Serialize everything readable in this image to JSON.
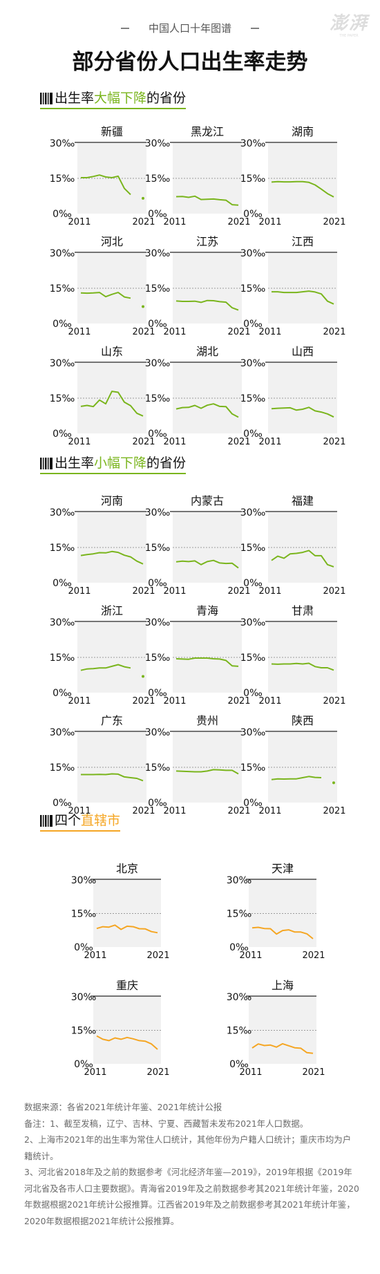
{
  "header": {
    "series_label": "中国人口十年图谱",
    "brand": "澎湃",
    "brand_sub": "THE PAPER",
    "title": "部分省份人口出生率走势"
  },
  "colors": {
    "green": "#7ab51d",
    "orange": "#f5a623",
    "panel_bg": "#f1f1f1",
    "text": "#1a1a1a",
    "note": "#6b6b6b"
  },
  "sections": [
    {
      "pre": "出生率",
      "highlight": "大幅下降",
      "post": "的省份",
      "color": "#7ab51d"
    },
    {
      "pre": "出生率",
      "highlight": "小幅下降",
      "post": "的省份",
      "color": "#7ab51d"
    },
    {
      "pre": "四个",
      "highlight": "直辖市",
      "post": "",
      "color": "#f5a623"
    }
  ],
  "axis": {
    "y_ticks": [
      "30‰",
      "15‰",
      "0‰"
    ],
    "x_start": "2011",
    "x_end": "2021"
  },
  "chart_data": [
    {
      "type": "line",
      "title": "新疆",
      "ylim": [
        0,
        30
      ],
      "x": [
        2011,
        2012,
        2013,
        2014,
        2015,
        2016,
        2017,
        2018,
        2019,
        2020,
        2021
      ],
      "values": [
        15.3,
        15.3,
        15.8,
        16.4,
        15.6,
        15.3,
        15.9,
        10.7,
        8.1,
        null,
        6.5
      ]
    },
    {
      "type": "line",
      "title": "黑龙江",
      "ylim": [
        0,
        30
      ],
      "x": [
        2011,
        2012,
        2013,
        2014,
        2015,
        2016,
        2017,
        2018,
        2019,
        2020,
        2021
      ],
      "values": [
        7.2,
        7.3,
        6.9,
        7.4,
        6.0,
        6.1,
        6.2,
        5.9,
        5.7,
        3.8,
        3.6
      ]
    },
    {
      "type": "line",
      "title": "湖南",
      "ylim": [
        0,
        30
      ],
      "x": [
        2011,
        2012,
        2013,
        2014,
        2015,
        2016,
        2017,
        2018,
        2019,
        2020,
        2021
      ],
      "values": [
        13.4,
        13.6,
        13.5,
        13.5,
        13.6,
        13.6,
        13.3,
        12.2,
        10.4,
        8.5,
        7.1
      ]
    },
    {
      "type": "line",
      "title": "河北",
      "ylim": [
        0,
        30
      ],
      "x": [
        2011,
        2012,
        2013,
        2014,
        2015,
        2016,
        2017,
        2018,
        2019,
        2020,
        2021
      ],
      "values": [
        13.0,
        12.9,
        13.0,
        13.2,
        11.4,
        12.4,
        13.2,
        11.3,
        10.8,
        null,
        7.2
      ]
    },
    {
      "type": "line",
      "title": "江苏",
      "ylim": [
        0,
        30
      ],
      "x": [
        2011,
        2012,
        2013,
        2014,
        2015,
        2016,
        2017,
        2018,
        2019,
        2020,
        2021
      ],
      "values": [
        9.6,
        9.4,
        9.4,
        9.5,
        9.0,
        9.8,
        9.7,
        9.3,
        9.1,
        6.7,
        5.7
      ]
    },
    {
      "type": "line",
      "title": "江西",
      "ylim": [
        0,
        30
      ],
      "x": [
        2011,
        2012,
        2013,
        2014,
        2015,
        2016,
        2017,
        2018,
        2019,
        2020,
        2021
      ],
      "values": [
        13.5,
        13.5,
        13.2,
        13.2,
        13.2,
        13.5,
        13.8,
        13.4,
        12.6,
        9.5,
        8.3
      ]
    },
    {
      "type": "line",
      "title": "山东",
      "ylim": [
        0,
        30
      ],
      "x": [
        2011,
        2012,
        2013,
        2014,
        2015,
        2016,
        2017,
        2018,
        2019,
        2020,
        2021
      ],
      "values": [
        11.5,
        11.9,
        11.4,
        14.2,
        12.6,
        17.9,
        17.5,
        13.3,
        11.8,
        8.6,
        7.4
      ]
    },
    {
      "type": "line",
      "title": "湖北",
      "ylim": [
        0,
        30
      ],
      "x": [
        2011,
        2012,
        2013,
        2014,
        2015,
        2016,
        2017,
        2018,
        2019,
        2020,
        2021
      ],
      "values": [
        10.4,
        11.0,
        11.1,
        11.9,
        10.7,
        12.0,
        12.6,
        11.5,
        11.4,
        8.3,
        6.9
      ]
    },
    {
      "type": "line",
      "title": "山西",
      "ylim": [
        0,
        30
      ],
      "x": [
        2011,
        2012,
        2013,
        2014,
        2015,
        2016,
        2017,
        2018,
        2019,
        2020,
        2021
      ],
      "values": [
        10.5,
        10.7,
        10.8,
        10.9,
        9.9,
        10.3,
        11.1,
        9.6,
        9.1,
        8.3,
        7.0
      ]
    },
    {
      "type": "line",
      "title": "河南",
      "ylim": [
        0,
        30
      ],
      "x": [
        2011,
        2012,
        2013,
        2014,
        2015,
        2016,
        2017,
        2018,
        2019,
        2020,
        2021
      ],
      "values": [
        11.6,
        12.0,
        12.3,
        12.8,
        12.7,
        13.3,
        12.9,
        11.7,
        11.0,
        9.2,
        8.0
      ]
    },
    {
      "type": "line",
      "title": "内蒙古",
      "ylim": [
        0,
        30
      ],
      "x": [
        2011,
        2012,
        2013,
        2014,
        2015,
        2016,
        2017,
        2018,
        2019,
        2020,
        2021
      ],
      "values": [
        8.9,
        9.2,
        9.0,
        9.3,
        7.7,
        9.0,
        9.5,
        8.4,
        8.2,
        8.3,
        6.3
      ]
    },
    {
      "type": "line",
      "title": "福建",
      "ylim": [
        0,
        30
      ],
      "x": [
        2011,
        2012,
        2013,
        2014,
        2015,
        2016,
        2017,
        2018,
        2019,
        2020,
        2021
      ],
      "values": [
        9.5,
        11.3,
        10.4,
        12.3,
        12.5,
        12.9,
        13.7,
        11.5,
        11.5,
        7.7,
        6.8
      ]
    },
    {
      "type": "line",
      "title": "浙江",
      "ylim": [
        0,
        30
      ],
      "x": [
        2011,
        2012,
        2013,
        2014,
        2015,
        2016,
        2017,
        2018,
        2019,
        2020,
        2021
      ],
      "values": [
        9.5,
        10.1,
        10.2,
        10.5,
        10.5,
        11.2,
        11.9,
        11.0,
        10.5,
        null,
        6.9
      ]
    },
    {
      "type": "line",
      "title": "青海",
      "ylim": [
        0,
        30
      ],
      "x": [
        2011,
        2012,
        2013,
        2014,
        2015,
        2016,
        2017,
        2018,
        2019,
        2020,
        2021
      ],
      "values": [
        14.4,
        14.3,
        14.2,
        14.7,
        14.7,
        14.7,
        14.4,
        14.3,
        13.7,
        11.4,
        11.2
      ]
    },
    {
      "type": "line",
      "title": "甘肃",
      "ylim": [
        0,
        30
      ],
      "x": [
        2011,
        2012,
        2013,
        2014,
        2015,
        2016,
        2017,
        2018,
        2019,
        2020,
        2021
      ],
      "values": [
        12.2,
        12.1,
        12.2,
        12.2,
        12.4,
        12.2,
        12.5,
        11.1,
        10.6,
        10.6,
        9.6
      ]
    },
    {
      "type": "line",
      "title": "广东",
      "ylim": [
        0,
        30
      ],
      "x": [
        2011,
        2012,
        2013,
        2014,
        2015,
        2016,
        2017,
        2018,
        2019,
        2020,
        2021
      ],
      "values": [
        11.9,
        11.9,
        11.9,
        12.0,
        11.9,
        12.2,
        12.1,
        10.9,
        10.6,
        10.3,
        9.3
      ]
    },
    {
      "type": "line",
      "title": "贵州",
      "ylim": [
        0,
        30
      ],
      "x": [
        2011,
        2012,
        2013,
        2014,
        2015,
        2016,
        2017,
        2018,
        2019,
        2020,
        2021
      ],
      "values": [
        13.4,
        13.3,
        13.2,
        13.1,
        13.1,
        13.4,
        14.0,
        13.9,
        13.7,
        13.7,
        12.2
      ]
    },
    {
      "type": "line",
      "title": "陕西",
      "ylim": [
        0,
        30
      ],
      "x": [
        2011,
        2012,
        2013,
        2014,
        2015,
        2016,
        2017,
        2018,
        2019,
        2020,
        2021
      ],
      "values": [
        9.8,
        10.1,
        10.0,
        10.1,
        10.1,
        10.6,
        11.1,
        10.7,
        10.6,
        null,
        8.4
      ]
    },
    {
      "type": "line",
      "title": "北京",
      "ylim": [
        0,
        30
      ],
      "x": [
        2011,
        2012,
        2013,
        2014,
        2015,
        2016,
        2017,
        2018,
        2019,
        2020,
        2021
      ],
      "values": [
        8.3,
        9.1,
        8.9,
        9.8,
        7.9,
        9.3,
        9.1,
        8.2,
        8.1,
        6.9,
        6.4
      ]
    },
    {
      "type": "line",
      "title": "天津",
      "ylim": [
        0,
        30
      ],
      "x": [
        2011,
        2012,
        2013,
        2014,
        2015,
        2016,
        2017,
        2018,
        2019,
        2020,
        2021
      ],
      "values": [
        8.6,
        8.8,
        8.3,
        8.2,
        5.8,
        7.4,
        7.7,
        6.7,
        6.7,
        5.9,
        3.7
      ]
    },
    {
      "type": "line",
      "title": "重庆",
      "ylim": [
        0,
        30
      ],
      "x": [
        2011,
        2012,
        2013,
        2014,
        2015,
        2016,
        2017,
        2018,
        2019,
        2020,
        2021
      ],
      "values": [
        12.5,
        11.0,
        10.4,
        11.6,
        11.0,
        11.8,
        11.2,
        10.4,
        10.1,
        8.9,
        6.5
      ]
    },
    {
      "type": "line",
      "title": "上海",
      "ylim": [
        0,
        30
      ],
      "x": [
        2011,
        2012,
        2013,
        2014,
        2015,
        2016,
        2017,
        2018,
        2019,
        2020,
        2021
      ],
      "values": [
        7.1,
        8.9,
        8.2,
        8.4,
        7.5,
        9.0,
        8.1,
        7.2,
        7.0,
        5.0,
        4.7
      ]
    }
  ],
  "notes": [
    "数据来源：各省2021年统计年鉴、2021年统计公报",
    "备注：1、截至发稿，辽宁、吉林、宁夏、西藏暂未发布2021年人口数据。",
    "2、上海市2021年的出生率为常住人口统计，其他年份为户籍人口统计；重庆市均为户籍统计。",
    "3、河北省2018年及之前的数据参考《河北经济年鉴—2019》，2019年根据《2019年河北省及各市人口主要数据》。青海省2019年及之前数据参考其2021年统计年鉴，2020年数据根据2021年统计公报推算。江西省2019年及之前数据参考其2021年统计年鉴，2020年数据根据2021年统计公报推算。"
  ]
}
